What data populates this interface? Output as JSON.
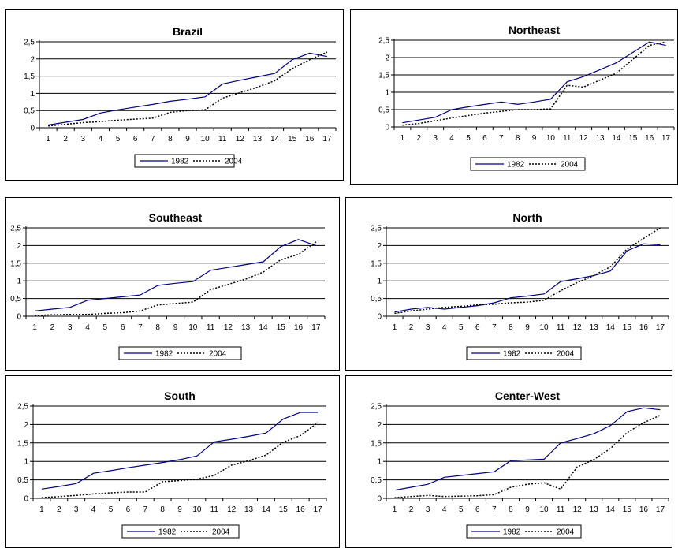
{
  "legend_labels": [
    "1982",
    "2004"
  ],
  "colors": {
    "line_1982": "#000080",
    "line_2004": "#000000",
    "grid": "#000000"
  },
  "chart_data": [
    {
      "type": "line",
      "title": "Brazil",
      "x": [
        1,
        2,
        3,
        4,
        5,
        6,
        7,
        8,
        9,
        10,
        11,
        12,
        13,
        14,
        15,
        16,
        17
      ],
      "ylim": [
        0,
        2.5
      ],
      "yticks": [
        "0",
        "0,5",
        "1",
        "1,5",
        "2",
        "2,5"
      ],
      "grid": "horizontal",
      "legend": "bottom",
      "series": [
        {
          "name": "1982",
          "style": "solid",
          "values": [
            0.08,
            0.16,
            0.24,
            0.43,
            0.52,
            0.6,
            0.68,
            0.77,
            0.83,
            0.9,
            1.27,
            1.38,
            1.48,
            1.58,
            1.98,
            2.17,
            2.07
          ]
        },
        {
          "name": "2004",
          "style": "dotted",
          "values": [
            0.05,
            0.1,
            0.15,
            0.18,
            0.22,
            0.25,
            0.28,
            0.45,
            0.5,
            0.52,
            0.86,
            1.02,
            1.18,
            1.37,
            1.72,
            1.98,
            2.2
          ]
        }
      ]
    },
    {
      "type": "line",
      "title": "Northeast",
      "x": [
        1,
        2,
        3,
        4,
        5,
        6,
        7,
        8,
        9,
        10,
        11,
        12,
        13,
        14,
        15,
        16,
        17
      ],
      "ylim": [
        0,
        2.5
      ],
      "yticks": [
        "0",
        "0,5",
        "1",
        "1,5",
        "2",
        "2,5"
      ],
      "grid": "horizontal",
      "legend": "bottom",
      "series": [
        {
          "name": "1982",
          "style": "solid",
          "values": [
            0.12,
            0.2,
            0.28,
            0.5,
            0.58,
            0.65,
            0.72,
            0.65,
            0.72,
            0.8,
            1.3,
            1.45,
            1.65,
            1.85,
            2.15,
            2.45,
            2.35
          ]
        },
        {
          "name": "2004",
          "style": "dotted",
          "values": [
            0.05,
            0.1,
            0.18,
            0.26,
            0.33,
            0.4,
            0.45,
            0.5,
            0.5,
            0.52,
            1.2,
            1.15,
            1.35,
            1.55,
            1.95,
            2.35,
            2.45
          ]
        }
      ]
    },
    {
      "type": "line",
      "title": "Southeast",
      "x": [
        1,
        2,
        3,
        4,
        5,
        6,
        7,
        8,
        9,
        10,
        11,
        12,
        13,
        14,
        15,
        16,
        17
      ],
      "ylim": [
        0,
        2.5
      ],
      "yticks": [
        "0",
        "0,5",
        "1",
        "1,5",
        "2",
        "2,5"
      ],
      "grid": "horizontal",
      "legend": "bottom",
      "series": [
        {
          "name": "1982",
          "style": "solid",
          "values": [
            0.15,
            0.2,
            0.25,
            0.45,
            0.5,
            0.55,
            0.6,
            0.87,
            0.93,
            0.98,
            1.3,
            1.38,
            1.46,
            1.54,
            1.97,
            2.17,
            2.0
          ]
        },
        {
          "name": "2004",
          "style": "dotted",
          "values": [
            0.02,
            0.04,
            0.05,
            0.05,
            0.08,
            0.1,
            0.15,
            0.32,
            0.36,
            0.4,
            0.75,
            0.9,
            1.05,
            1.25,
            1.6,
            1.75,
            2.1
          ]
        }
      ]
    },
    {
      "type": "line",
      "title": "North",
      "x": [
        1,
        2,
        3,
        4,
        5,
        6,
        7,
        8,
        9,
        10,
        11,
        12,
        13,
        14,
        15,
        16,
        17
      ],
      "ylim": [
        0,
        2.5
      ],
      "yticks": [
        "0",
        "0,5",
        "1",
        "1,5",
        "2",
        "2,5"
      ],
      "grid": "horizontal",
      "legend": "bottom",
      "series": [
        {
          "name": "1982",
          "style": "solid",
          "values": [
            0.12,
            0.2,
            0.25,
            0.2,
            0.25,
            0.3,
            0.38,
            0.52,
            0.57,
            0.63,
            0.98,
            1.06,
            1.15,
            1.28,
            1.85,
            2.05,
            2.02
          ]
        },
        {
          "name": "2004",
          "style": "dotted",
          "values": [
            0.08,
            0.15,
            0.2,
            0.25,
            0.28,
            0.32,
            0.34,
            0.38,
            0.4,
            0.45,
            0.72,
            0.95,
            1.15,
            1.4,
            1.9,
            2.2,
            2.5
          ]
        }
      ]
    },
    {
      "type": "line",
      "title": "South",
      "x": [
        1,
        2,
        3,
        4,
        5,
        6,
        7,
        8,
        9,
        10,
        11,
        12,
        13,
        14,
        15,
        16,
        17
      ],
      "ylim": [
        0,
        2.5
      ],
      "yticks": [
        "0",
        "0,5",
        "1",
        "1,5",
        "2",
        "2,5"
      ],
      "grid": "horizontal",
      "legend": "bottom",
      "series": [
        {
          "name": "1982",
          "style": "solid",
          "values": [
            0.25,
            0.32,
            0.4,
            0.68,
            0.75,
            0.83,
            0.9,
            0.97,
            1.05,
            1.15,
            1.53,
            1.6,
            1.68,
            1.77,
            2.15,
            2.33,
            2.33
          ]
        },
        {
          "name": "2004",
          "style": "dotted",
          "values": [
            0.02,
            0.05,
            0.08,
            0.12,
            0.15,
            0.17,
            0.17,
            0.45,
            0.48,
            0.52,
            0.62,
            0.9,
            1.02,
            1.17,
            1.52,
            1.7,
            2.05
          ]
        }
      ]
    },
    {
      "type": "line",
      "title": "Center-West",
      "x": [
        1,
        2,
        3,
        4,
        5,
        6,
        7,
        8,
        9,
        10,
        11,
        12,
        13,
        14,
        15,
        16,
        17
      ],
      "ylim": [
        0,
        2.5
      ],
      "yticks": [
        "0",
        "0,5",
        "1",
        "1,5",
        "2",
        "2,5"
      ],
      "grid": "horizontal",
      "legend": "bottom",
      "series": [
        {
          "name": "1982",
          "style": "solid",
          "values": [
            0.22,
            0.3,
            0.38,
            0.57,
            0.62,
            0.67,
            0.72,
            1.02,
            1.04,
            1.06,
            1.5,
            1.62,
            1.75,
            1.97,
            2.35,
            2.45,
            2.4
          ]
        },
        {
          "name": "2004",
          "style": "dotted",
          "values": [
            0.02,
            0.05,
            0.08,
            0.05,
            0.06,
            0.07,
            0.1,
            0.3,
            0.38,
            0.42,
            0.25,
            0.85,
            1.05,
            1.35,
            1.78,
            2.05,
            2.25
          ]
        }
      ]
    }
  ]
}
